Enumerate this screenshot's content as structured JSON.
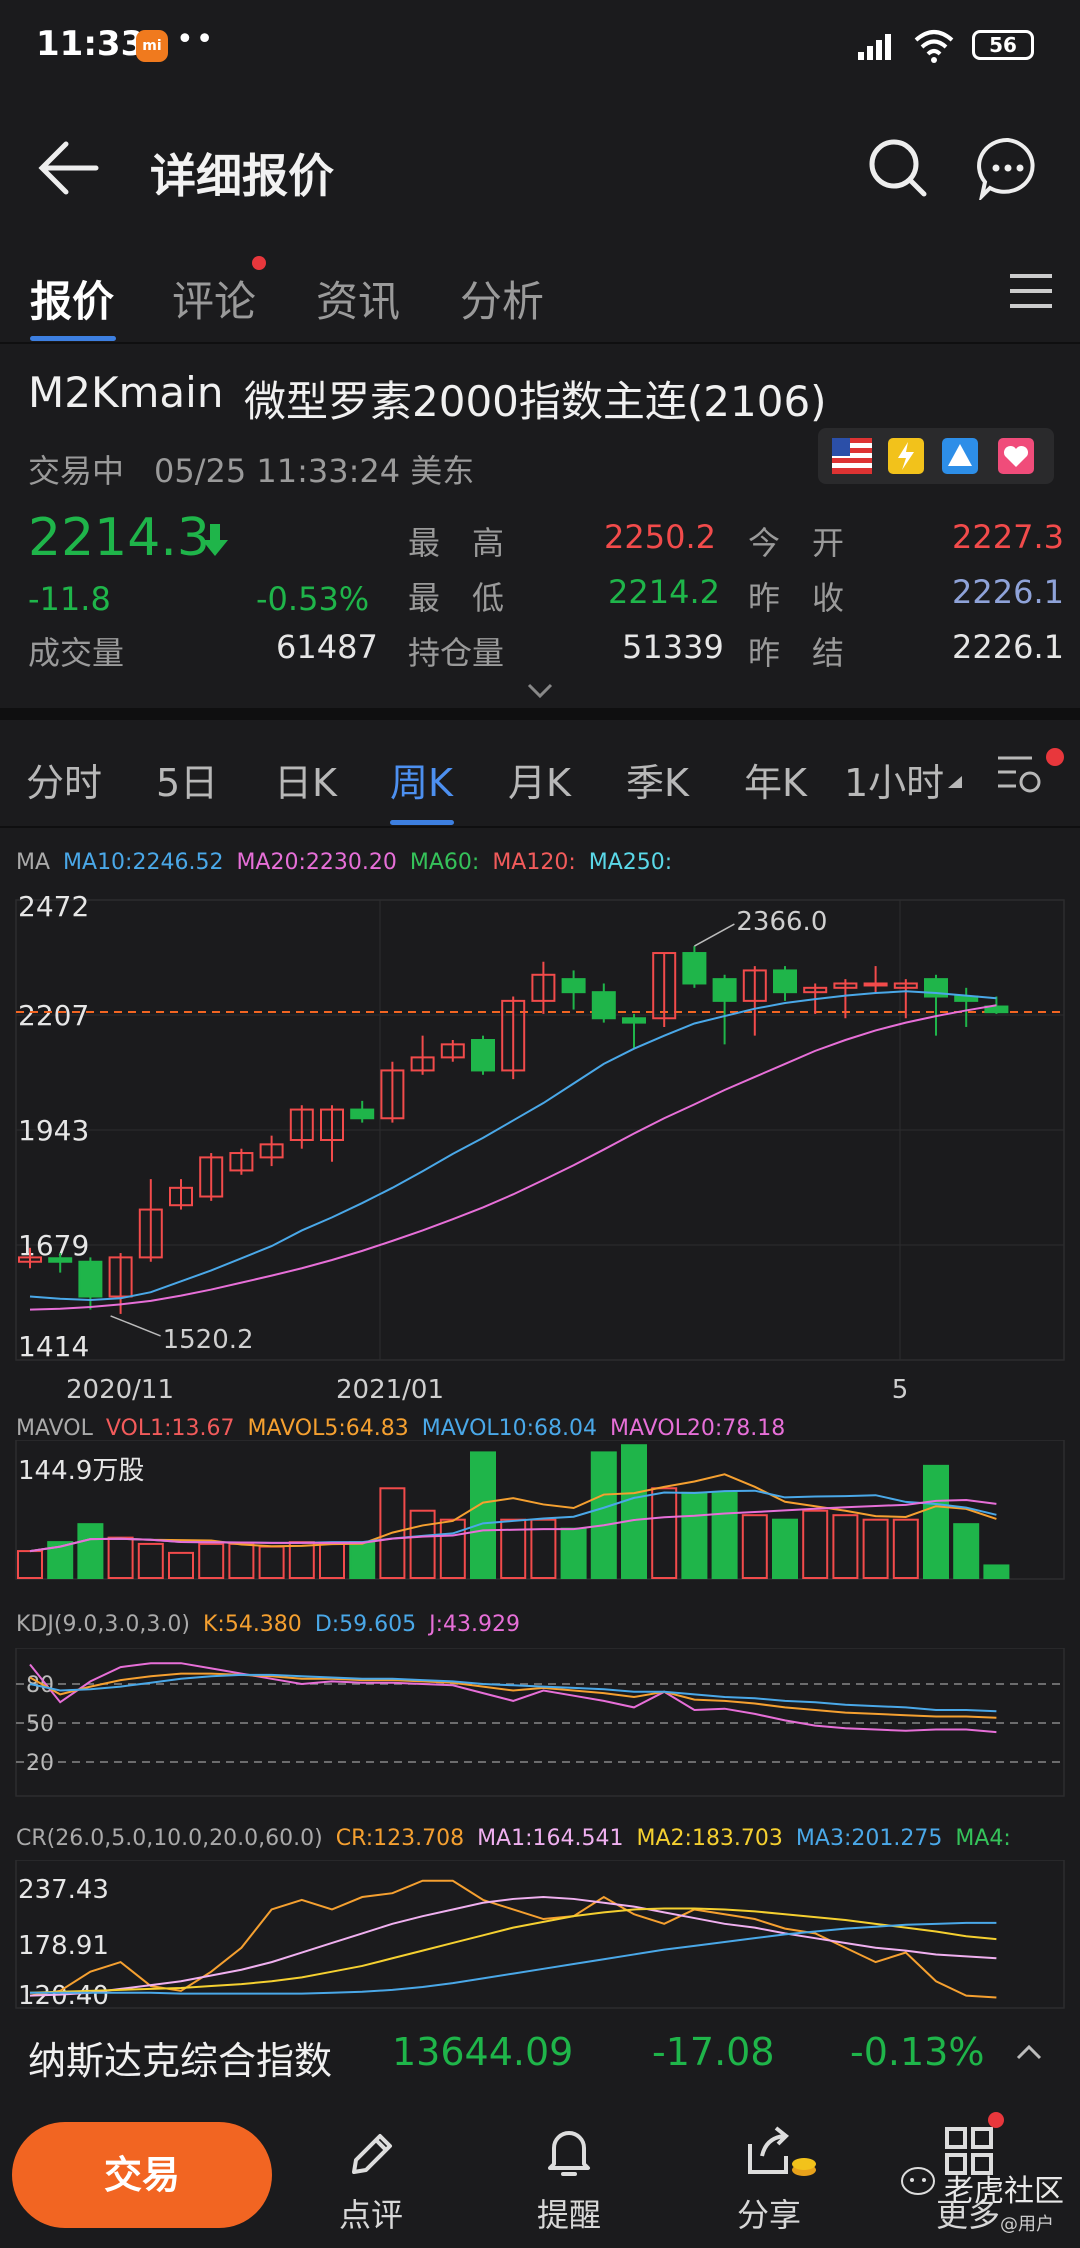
{
  "status_bar": {
    "time": "11:33",
    "battery": "56"
  },
  "header": {
    "title": "详细报价"
  },
  "tabs": [
    {
      "label": "报价",
      "active": true
    },
    {
      "label": "评论",
      "badge": true
    },
    {
      "label": "资讯"
    },
    {
      "label": "分析"
    }
  ],
  "instrument": {
    "code": "M2Kmain",
    "name": "微型罗素2000指数主连(2106)",
    "status": "交易中",
    "datetime": "05/25 11:33:24 美东",
    "price": "2214.3",
    "change": "-11.8",
    "change_pct": "-0.53%",
    "volume_label": "成交量",
    "volume": "61487",
    "stats": [
      {
        "label": "最　高",
        "value": "2250.2",
        "color": "#f24b4b"
      },
      {
        "label": "最　低",
        "value": "2214.2",
        "color": "#1fb54a"
      },
      {
        "label": "持仓量",
        "value": "51339",
        "color": "#e6e6e6"
      },
      {
        "label": "今　开",
        "value": "2227.3",
        "color": "#f24b4b"
      },
      {
        "label": "昨　收",
        "value": "2226.1",
        "color": "#8fa3d9"
      },
      {
        "label": "昨　结",
        "value": "2226.1",
        "color": "#e6e6e6"
      }
    ]
  },
  "timeframes": [
    {
      "label": "分时"
    },
    {
      "label": "5日"
    },
    {
      "label": "日K"
    },
    {
      "label": "周K",
      "active": true
    },
    {
      "label": "月K"
    },
    {
      "label": "季K"
    },
    {
      "label": "年K"
    },
    {
      "label": "1小时"
    }
  ],
  "ma_legend": {
    "prefix": "MA",
    "items": [
      {
        "text": "MA10:2246.52",
        "color": "#4aa8e8"
      },
      {
        "text": "MA20:2230.20",
        "color": "#e76fd8"
      },
      {
        "text": "MA60:",
        "color": "#35c25a"
      },
      {
        "text": "MA120:",
        "color": "#f25b5b"
      },
      {
        "text": "MA250:",
        "color": "#5ad8e8"
      }
    ]
  },
  "chart_data": {
    "type": "candlestick",
    "y_ticks": [
      "2472",
      "2207",
      "1943",
      "1679",
      "1414"
    ],
    "ylim": [
      1414,
      2472
    ],
    "x_ticks": [
      "2020/11",
      "2021/01",
      "5"
    ],
    "last_price": 2214.3,
    "annotations": {
      "high": "2366.0",
      "low": "1520.2"
    },
    "candles": [
      {
        "o": 1640,
        "c": 1650,
        "h": 1672,
        "l": 1625
      },
      {
        "o": 1648,
        "c": 1640,
        "h": 1660,
        "l": 1615
      },
      {
        "o": 1640,
        "c": 1560,
        "h": 1650,
        "l": 1530
      },
      {
        "o": 1560,
        "c": 1650,
        "h": 1660,
        "l": 1520
      },
      {
        "o": 1650,
        "c": 1760,
        "h": 1830,
        "l": 1640
      },
      {
        "o": 1770,
        "c": 1810,
        "h": 1830,
        "l": 1760
      },
      {
        "o": 1790,
        "c": 1880,
        "h": 1890,
        "l": 1780
      },
      {
        "o": 1850,
        "c": 1890,
        "h": 1900,
        "l": 1840
      },
      {
        "o": 1880,
        "c": 1910,
        "h": 1930,
        "l": 1860
      },
      {
        "o": 1920,
        "c": 1990,
        "h": 2000,
        "l": 1900
      },
      {
        "o": 1920,
        "c": 1990,
        "h": 2000,
        "l": 1870
      },
      {
        "o": 1990,
        "c": 1970,
        "h": 2010,
        "l": 1960
      },
      {
        "o": 1970,
        "c": 2080,
        "h": 2100,
        "l": 1960
      },
      {
        "o": 2080,
        "c": 2110,
        "h": 2160,
        "l": 2070
      },
      {
        "o": 2110,
        "c": 2140,
        "h": 2150,
        "l": 2100
      },
      {
        "o": 2150,
        "c": 2080,
        "h": 2160,
        "l": 2070
      },
      {
        "o": 2080,
        "c": 2240,
        "h": 2250,
        "l": 2060
      },
      {
        "o": 2240,
        "c": 2300,
        "h": 2330,
        "l": 2210
      },
      {
        "o": 2290,
        "c": 2260,
        "h": 2310,
        "l": 2220
      },
      {
        "o": 2260,
        "c": 2200,
        "h": 2280,
        "l": 2190
      },
      {
        "o": 2200,
        "c": 2190,
        "h": 2210,
        "l": 2130
      },
      {
        "o": 2200,
        "c": 2350,
        "h": 2350,
        "l": 2180
      },
      {
        "o": 2350,
        "c": 2280,
        "h": 2366,
        "l": 2270
      },
      {
        "o": 2290,
        "c": 2240,
        "h": 2300,
        "l": 2140
      },
      {
        "o": 2240,
        "c": 2310,
        "h": 2320,
        "l": 2160
      },
      {
        "o": 2310,
        "c": 2260,
        "h": 2320,
        "l": 2240
      },
      {
        "o": 2260,
        "c": 2270,
        "h": 2280,
        "l": 2210
      },
      {
        "o": 2270,
        "c": 2280,
        "h": 2290,
        "l": 2200
      },
      {
        "o": 2280,
        "c": 2280,
        "h": 2320,
        "l": 2260
      },
      {
        "o": 2270,
        "c": 2280,
        "h": 2290,
        "l": 2200
      },
      {
        "o": 2290,
        "c": 2250,
        "h": 2300,
        "l": 2160
      },
      {
        "o": 2250,
        "c": 2240,
        "h": 2270,
        "l": 2180
      },
      {
        "o": 2227,
        "c": 2214,
        "h": 2250,
        "l": 2210
      }
    ],
    "ma10": [
      1560,
      1555,
      1552,
      1556,
      1570,
      1595,
      1620,
      1648,
      1676,
      1712,
      1742,
      1775,
      1810,
      1848,
      1888,
      1925,
      1965,
      2005,
      2050,
      2095,
      2130,
      2160,
      2188,
      2205,
      2222,
      2235,
      2244,
      2252,
      2258,
      2262,
      2258,
      2252,
      2246
    ],
    "ma20": [
      1530,
      1532,
      1536,
      1542,
      1550,
      1562,
      1576,
      1592,
      1608,
      1625,
      1644,
      1665,
      1688,
      1712,
      1738,
      1765,
      1795,
      1828,
      1862,
      1898,
      1935,
      1970,
      2002,
      2035,
      2065,
      2095,
      2125,
      2150,
      2172,
      2190,
      2205,
      2218,
      2230
    ]
  },
  "vol_legend": {
    "prefix": "MAVOL",
    "items": [
      {
        "text": "VOL1:13.67",
        "color": "#f25b5b"
      },
      {
        "text": "MAVOL5:64.83",
        "color": "#f5a030"
      },
      {
        "text": "MAVOL10:68.04",
        "color": "#4aa8e8"
      },
      {
        "text": "MAVOL20:78.18",
        "color": "#e76fd8"
      }
    ],
    "top_value": "144.9万股"
  },
  "volume_data": {
    "max": 144.9,
    "bars": [
      30,
      40,
      60,
      45,
      38,
      28,
      38,
      38,
      35,
      40,
      38,
      40,
      100,
      75,
      65,
      140,
      65,
      65,
      55,
      140,
      148,
      100,
      95,
      95,
      70,
      65,
      75,
      70,
      65,
      65,
      125,
      60,
      14
    ]
  },
  "kdj_legend": {
    "prefix": "KDJ(9.0,3.0,3.0)",
    "items": [
      {
        "text": "K:54.380",
        "color": "#f5a030"
      },
      {
        "text": "D:59.605",
        "color": "#4aa8e8"
      },
      {
        "text": "J:43.929",
        "color": "#e76fd8"
      }
    ],
    "ticks": [
      "80",
      "50",
      "20"
    ]
  },
  "cr_legend": {
    "prefix": "CR(26.0,5.0,10.0,20.0,60.0)",
    "items": [
      {
        "text": "CR:123.708",
        "color": "#f5a030"
      },
      {
        "text": "MA1:164.541",
        "color": "#f0b0f0"
      },
      {
        "text": "MA2:183.703",
        "color": "#f5d030"
      },
      {
        "text": "MA3:201.275",
        "color": "#4aa8e8"
      },
      {
        "text": "MA4:",
        "color": "#35c25a"
      }
    ],
    "ticks": [
      "237.43",
      "178.91",
      "120.40"
    ]
  },
  "ticker": {
    "name": "纳斯达克综合指数",
    "value": "13644.09",
    "change": "-17.08",
    "pct": "-0.13%"
  },
  "bottom_nav": {
    "trade": "交易",
    "items": [
      {
        "label": "点评"
      },
      {
        "label": "提醒"
      },
      {
        "label": "分享"
      },
      {
        "label": "更多"
      }
    ],
    "watermark": "老虎社区",
    "watermark_sub": "@用户"
  }
}
